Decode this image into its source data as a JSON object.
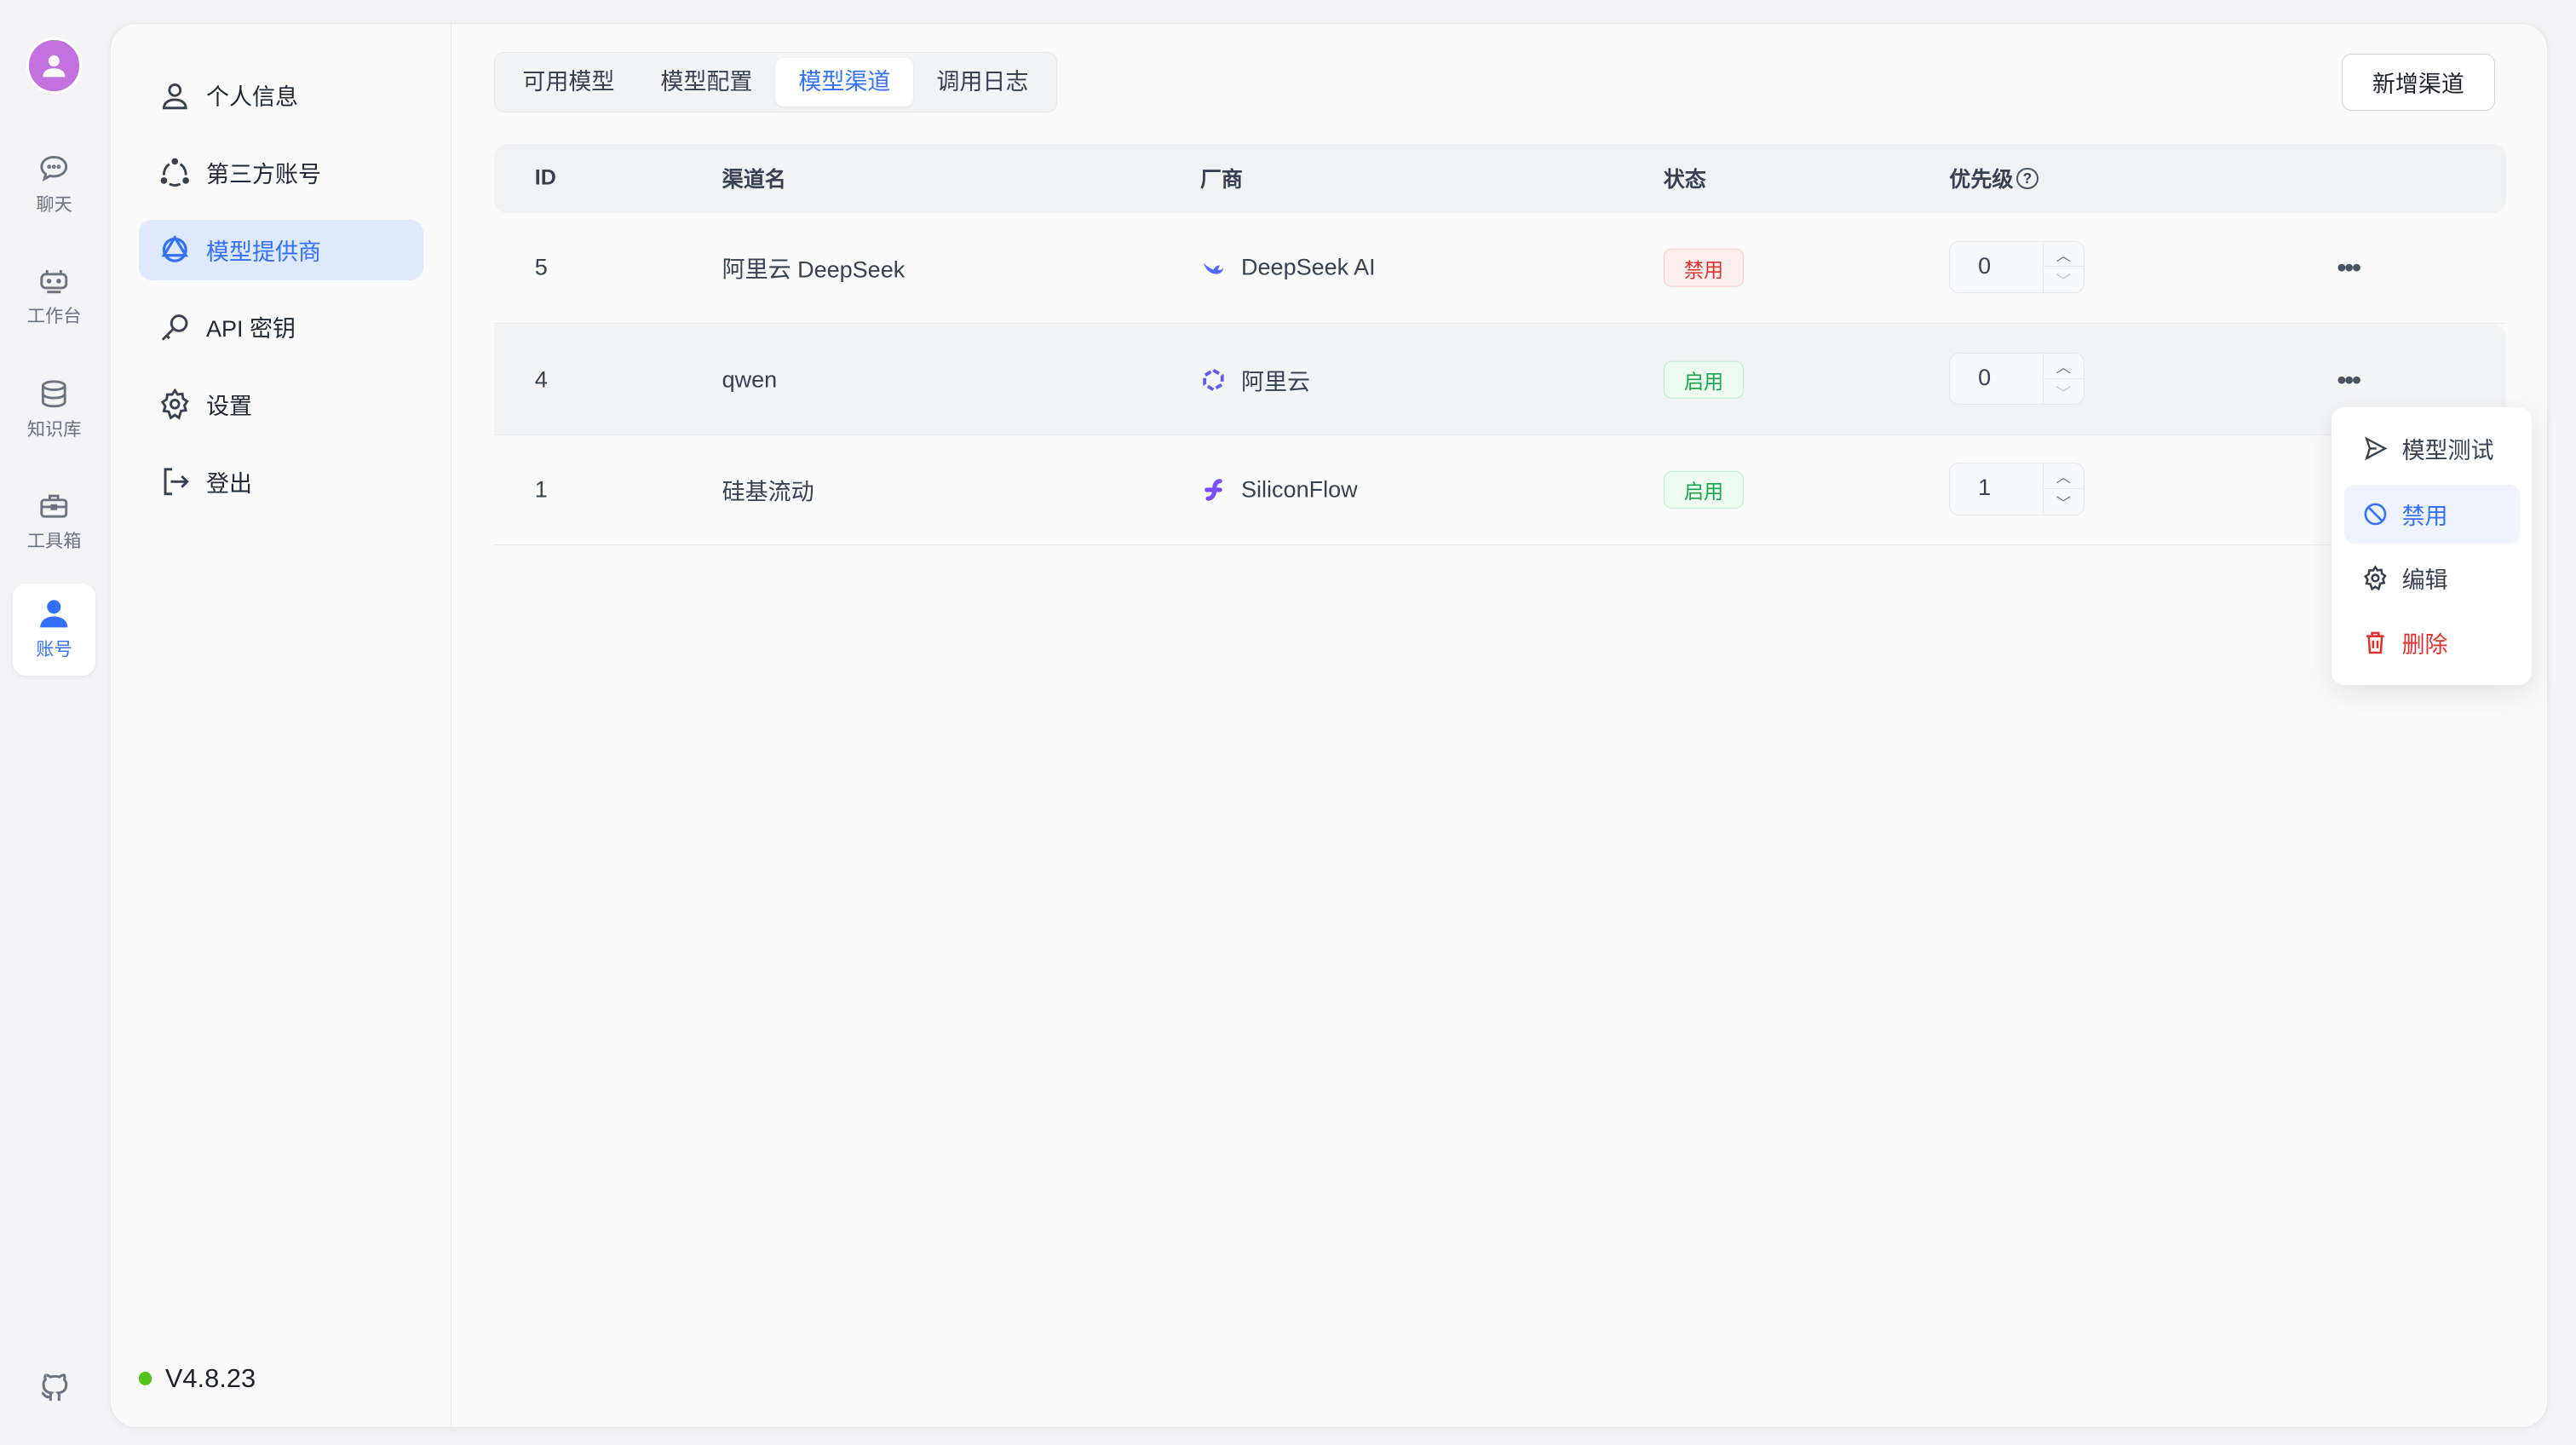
{
  "rail": {
    "items": [
      {
        "label": "聊天",
        "icon": "chat-icon"
      },
      {
        "label": "工作台",
        "icon": "robot-icon"
      },
      {
        "label": "知识库",
        "icon": "database-icon"
      },
      {
        "label": "工具箱",
        "icon": "toolbox-icon"
      },
      {
        "label": "账号",
        "icon": "user-icon",
        "active": true
      }
    ]
  },
  "subnav": {
    "items": [
      {
        "label": "个人信息"
      },
      {
        "label": "第三方账号"
      },
      {
        "label": "模型提供商",
        "active": true
      },
      {
        "label": "API 密钥"
      },
      {
        "label": "设置"
      },
      {
        "label": "登出"
      }
    ],
    "version": "V4.8.23"
  },
  "tabs": [
    {
      "label": "可用模型"
    },
    {
      "label": "模型配置"
    },
    {
      "label": "模型渠道",
      "active": true
    },
    {
      "label": "调用日志"
    }
  ],
  "add_button": "新增渠道",
  "table": {
    "headers": {
      "id": "ID",
      "name": "渠道名",
      "vendor": "厂商",
      "status": "状态",
      "priority": "优先级"
    },
    "rows": [
      {
        "id": "5",
        "name": "阿里云 DeepSeek",
        "vendor": "DeepSeek AI",
        "status": "禁用",
        "priority": "0"
      },
      {
        "id": "4",
        "name": "qwen",
        "vendor": "阿里云",
        "status": "启用",
        "priority": "0"
      },
      {
        "id": "1",
        "name": "硅基流动",
        "vendor": "SiliconFlow",
        "status": "启用",
        "priority": "1"
      }
    ]
  },
  "menu": {
    "items": [
      {
        "label": "模型测试"
      },
      {
        "label": "禁用"
      },
      {
        "label": "编辑"
      },
      {
        "label": "删除"
      }
    ]
  },
  "colors": {
    "accent": "#3370ff",
    "danger": "#e03131",
    "success": "#16a34a",
    "avatar": "#c471e0"
  }
}
